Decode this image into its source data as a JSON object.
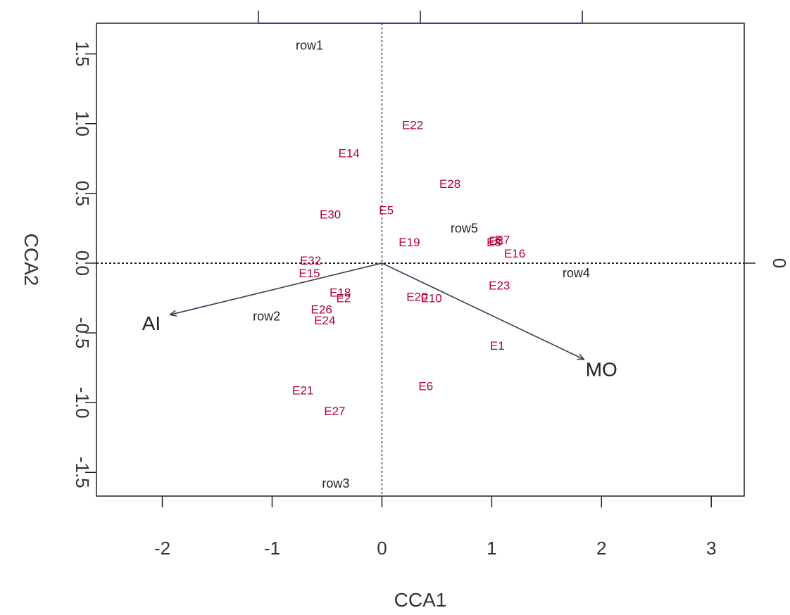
{
  "chart_data": {
    "type": "scatter",
    "xlabel": "CCA1",
    "ylabel": "CCA2",
    "xlim": [
      -2.6,
      3.3
    ],
    "ylim": [
      -1.67,
      1.72
    ],
    "top_xlim": [
      -4.0,
      4.0
    ],
    "x_ticks": [
      -2,
      -1,
      0,
      1,
      2,
      3
    ],
    "y_ticks": [
      -1.5,
      -1.0,
      -0.5,
      0.0,
      0.5,
      1.0,
      1.5
    ],
    "y_tick_labels": [
      "-1.5",
      "-1.0",
      "-0.5",
      "0.0",
      "0.5",
      "1.0",
      "1.5"
    ],
    "right_ticks": [
      0
    ],
    "right_tick_labels": [
      "0"
    ],
    "top_ticks": [
      -2,
      0,
      2
    ],
    "grid": false,
    "colors": {
      "sites": "#b0003a",
      "rows": "#222222",
      "arrows": "#3a3a5a",
      "frame": "#222222",
      "top_axis": "#3b3bb0"
    },
    "sites": [
      {
        "label": "E22",
        "x": 0.28,
        "y": 0.99
      },
      {
        "label": "E14",
        "x": -0.3,
        "y": 0.79
      },
      {
        "label": "E28",
        "x": 0.62,
        "y": 0.57
      },
      {
        "label": "E30",
        "x": -0.47,
        "y": 0.35
      },
      {
        "label": "E5",
        "x": 0.04,
        "y": 0.38
      },
      {
        "label": "E19",
        "x": 0.25,
        "y": 0.15
      },
      {
        "label": "E8",
        "x": 1.02,
        "y": 0.15
      },
      {
        "label": "E3",
        "x": 1.04,
        "y": 0.16
      },
      {
        "label": "E7",
        "x": 1.1,
        "y": 0.17
      },
      {
        "label": "E16",
        "x": 1.21,
        "y": 0.07
      },
      {
        "label": "E32",
        "x": -0.65,
        "y": 0.02
      },
      {
        "label": "E15",
        "x": -0.66,
        "y": -0.07
      },
      {
        "label": "E23",
        "x": 1.07,
        "y": -0.16
      },
      {
        "label": "E18",
        "x": -0.38,
        "y": -0.21
      },
      {
        "label": "E2",
        "x": -0.35,
        "y": -0.25
      },
      {
        "label": "E20",
        "x": 0.32,
        "y": -0.24
      },
      {
        "label": "E10",
        "x": 0.45,
        "y": -0.25
      },
      {
        "label": "E26",
        "x": -0.55,
        "y": -0.33
      },
      {
        "label": "E24",
        "x": -0.52,
        "y": -0.41
      },
      {
        "label": "E1",
        "x": 1.05,
        "y": -0.59
      },
      {
        "label": "E6",
        "x": 0.4,
        "y": -0.88
      },
      {
        "label": "E21",
        "x": -0.72,
        "y": -0.91
      },
      {
        "label": "E27",
        "x": -0.43,
        "y": -1.06
      }
    ],
    "rows": [
      {
        "label": "row1",
        "x": -0.66,
        "y": 1.56
      },
      {
        "label": "row5",
        "x": 0.75,
        "y": 0.25
      },
      {
        "label": "row4",
        "x": 1.77,
        "y": -0.07
      },
      {
        "label": "row2",
        "x": -1.05,
        "y": -0.38
      },
      {
        "label": "row3",
        "x": -0.42,
        "y": -1.58
      }
    ],
    "arrows": [
      {
        "label": "AI",
        "x": -1.93,
        "y": -0.37,
        "label_x": -2.1,
        "label_y": -0.43
      },
      {
        "label": "MO",
        "x": 1.84,
        "y": -0.69,
        "label_x": 2.0,
        "label_y": -0.76
      }
    ]
  }
}
